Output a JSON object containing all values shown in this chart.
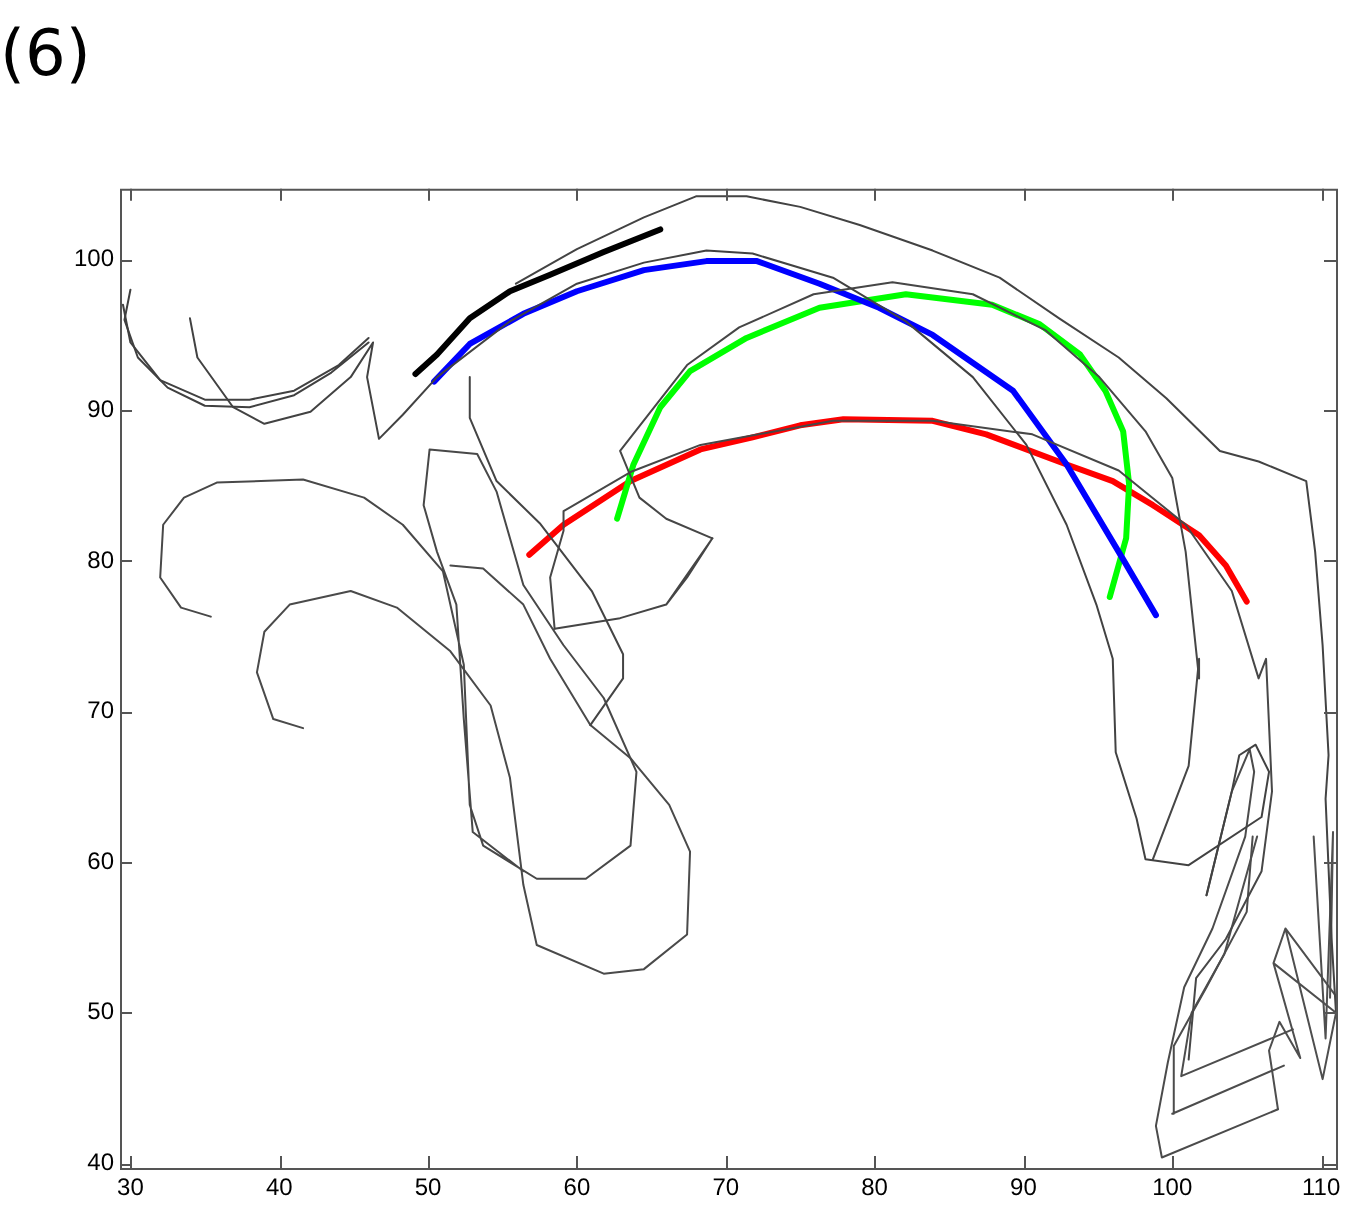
{
  "chart_data": {
    "type": "line",
    "title": "(6)",
    "xlim": [
      29.3,
      111
    ],
    "ylim": [
      39.7,
      104.7
    ],
    "xticks": [
      30,
      40,
      50,
      60,
      70,
      80,
      90,
      100,
      110
    ],
    "yticks": [
      40,
      50,
      60,
      70,
      80,
      90,
      100
    ],
    "grid": false,
    "legend": false,
    "marker": "none",
    "line_style": "solid",
    "series": [
      {
        "color": "#404040",
        "x": [
          30,
          29.6,
          30.5,
          32.5,
          35,
          38,
          41,
          43.5,
          46
        ],
        "values": [
          98,
          96,
          93.5,
          91.5,
          90.3,
          90.2,
          91,
          92.5,
          94.5
        ]
      },
      {
        "color": "#414141",
        "x": [
          29.5,
          30,
          32,
          35,
          38,
          41,
          44,
          46
        ],
        "values": [
          97,
          94.5,
          92,
          90.7,
          90.7,
          91.3,
          93,
          94.8
        ]
      },
      {
        "color": "#424242",
        "x": [
          34,
          34.5,
          36.9,
          39,
          42.1,
          44.8,
          46.3,
          45.9,
          46.7,
          48.3,
          50.6,
          55.5,
          60,
          64.5,
          68.7,
          71.8,
          77.2,
          82.1,
          86.6,
          90.2,
          92.9,
          94.9,
          96,
          96.2,
          97.6,
          98.2,
          101.1,
          106,
          106.5,
          105.6,
          104.5,
          104,
          102.3
        ],
        "values": [
          96.1,
          93.5,
          90.2,
          89.1,
          89.9,
          92.2,
          94.5,
          92.2,
          88.1,
          89.7,
          92.2,
          95.9,
          98.4,
          99.8,
          100.6,
          100.4,
          98.8,
          95.9,
          92.2,
          87.7,
          82.4,
          77.1,
          73.5,
          67.3,
          62.9,
          60.2,
          59.8,
          63,
          66,
          67.8,
          67.1,
          64.7,
          57.8
        ]
      },
      {
        "color": "#434343",
        "x": [
          55.9,
          60,
          64.5,
          68,
          71.4,
          75,
          79,
          83.9,
          88.4,
          92.4,
          96.4,
          99.6,
          103.2,
          105.8,
          109,
          109.6,
          110.1,
          110.5,
          110.3,
          110.7,
          111
        ],
        "values": [
          98.4,
          100.7,
          102.8,
          104.2,
          104.2,
          103.5,
          102.3,
          100.6,
          98.8,
          96.1,
          93.5,
          90.8,
          87.3,
          86.6,
          85.3,
          80.6,
          74.4,
          67.1,
          64.2,
          55,
          50
        ]
      },
      {
        "color": "#444444",
        "x": [
          60.9,
          63.1,
          63.1,
          61,
          57.5,
          54.6,
          52.8,
          52.8
        ],
        "values": [
          69.1,
          72.2,
          73.8,
          78,
          82.5,
          85.3,
          89.5,
          92.2
        ]
      },
      {
        "color": "#454545",
        "x": [
          62.9,
          66,
          69.1,
          67.4,
          66,
          62.9,
          58.5
        ],
        "values": [
          76.2,
          77.1,
          81.5,
          78.9,
          77.1,
          76.2,
          75.5
        ]
      },
      {
        "color": "#464646",
        "x": [
          69.1,
          66,
          64.2,
          62.9,
          67.4,
          70.9,
          75.9,
          81.2,
          86.6,
          91.5,
          95.1,
          98.2,
          100,
          100.9,
          101.8,
          101.8,
          101.1,
          98.7
        ],
        "values": [
          81.5,
          82.8,
          84.2,
          87.3,
          93,
          95.5,
          97.7,
          98.5,
          97.7,
          95.3,
          92.2,
          88.6,
          85.5,
          80.6,
          72.2,
          73.5,
          66.4,
          60.2
        ]
      },
      {
        "color": "#474747",
        "x": [
          58.5,
          58.2,
          59.1,
          59.1,
          63.6,
          68.3,
          77.2,
          83.9,
          90.6,
          96.4,
          100.9,
          104,
          105.8,
          106.3,
          106.7,
          106,
          103.6,
          101.6,
          101.1
        ],
        "values": [
          75.5,
          78.9,
          82,
          83.3,
          85.9,
          87.7,
          89.3,
          89.3,
          88.4,
          86,
          82.4,
          78,
          72.2,
          73.5,
          64.7,
          59.4,
          54.9,
          52.3,
          46.9
        ]
      },
      {
        "color": "#484848",
        "x": [
          35.4,
          33.4,
          32,
          32.2,
          33.6,
          35.8,
          41.6,
          45.7,
          48.3,
          51,
          52.4,
          52.8,
          53.7,
          57.3,
          60.6,
          63.6,
          64,
          61.8,
          59.1,
          56.4,
          54.6,
          53.3,
          50.1,
          49.7,
          50.6,
          51.9,
          52.4,
          53,
          56.4
        ],
        "values": [
          76.3,
          76.9,
          78.9,
          82.4,
          84.2,
          85.2,
          85.4,
          84.2,
          82.4,
          79.3,
          73.1,
          63.8,
          61.1,
          58.9,
          58.9,
          61.1,
          66,
          70.9,
          74.4,
          78.4,
          84.6,
          87.1,
          87.4,
          83.7,
          80.6,
          77.1,
          69.5,
          62,
          59.4
        ]
      },
      {
        "color": "#4a4a4a",
        "x": [
          41.6,
          39.6,
          38.5,
          39,
          40.7,
          44.8,
          47.9,
          51.5,
          54.2,
          55.5,
          56.4,
          57.3,
          61.8,
          64.5,
          67.4,
          67.6,
          66.2,
          63.6,
          60.9,
          58.2,
          56.4,
          53.7,
          51.5
        ],
        "values": [
          68.9,
          69.5,
          72.6,
          75.3,
          77.1,
          78,
          76.9,
          74,
          70.4,
          65.6,
          58.5,
          54.5,
          52.6,
          52.9,
          55.2,
          60.7,
          63.8,
          66.9,
          69.1,
          73.5,
          77.1,
          79.5,
          79.7
        ]
      },
      {
        "color": "#4b4b4b",
        "x": [
          107.1,
          99.3,
          98.9,
          99.7,
          100.8,
          102.7,
          104.9,
          105.5,
          105.2,
          104,
          102.3
        ],
        "values": [
          43.6,
          40.4,
          42.5,
          46.7,
          51.7,
          55.6,
          61.7,
          66,
          67.5,
          64.7,
          57.8
        ]
      },
      {
        "color": "#4c4c4c",
        "x": [
          107.5,
          100,
          100.1,
          102.3,
          105,
          105.4
        ],
        "values": [
          46.5,
          43.3,
          47.8,
          51.7,
          56.7,
          61.7
        ]
      },
      {
        "color": "#4d4d4d",
        "x": [
          108.1,
          100.6,
          101.3,
          103.5,
          105.7
        ],
        "values": [
          48.9,
          45.8,
          50,
          53.9,
          61.7
        ]
      },
      {
        "color": "#4e4e4e",
        "x": [
          107.1,
          106.5,
          107.2,
          108.6,
          106.8,
          107.6,
          110.1,
          111,
          106.8,
          107.6,
          111
        ],
        "values": [
          43.6,
          47.5,
          49.4,
          47,
          53.3,
          55.6,
          45.6,
          50,
          53.3,
          55.6,
          51.1
        ]
      },
      {
        "color": "#4f4f4f",
        "x": [
          109.5,
          110.3,
          110.8,
          110.6
        ],
        "values": [
          61.7,
          48.3,
          62,
          51
        ]
      },
      {
        "color": "#000000",
        "x": [
          49.15,
          50.6,
          52.8,
          55.5,
          58.2,
          61.8,
          65.6
        ],
        "values": [
          92.4,
          93.7,
          96.1,
          97.9,
          99,
          100.5,
          102
        ]
      },
      {
        "color": "#0000ff",
        "x": [
          50.4,
          52.8,
          56.4,
          60,
          64.5,
          68.7,
          72.1,
          76.3,
          80.3,
          83.9,
          89.3,
          92.9,
          96.4,
          98.9
        ],
        "values": [
          91.9,
          94.4,
          96.4,
          97.9,
          99.3,
          99.9,
          99.9,
          98.4,
          96.8,
          95,
          91.3,
          86.4,
          80.6,
          76.4
        ]
      },
      {
        "color": "#00ff00",
        "x": [
          62.7,
          63.8,
          65.6,
          67.6,
          71.4,
          76.3,
          82.1,
          87.9,
          91.1,
          93.8,
          95.5,
          96.7,
          97.1,
          96.9,
          95.8
        ],
        "values": [
          82.8,
          86.4,
          90.2,
          92.6,
          94.8,
          96.8,
          97.7,
          97,
          95.7,
          93.7,
          91.3,
          88.6,
          85.1,
          81.5,
          77.6
        ]
      },
      {
        "color": "#ff0000",
        "x": [
          56.8,
          59.1,
          63.6,
          68.3,
          71.8,
          75,
          77.9,
          83.9,
          87.5,
          92.9,
          96,
          98.7,
          101.8,
          103.6,
          105
        ],
        "values": [
          80.4,
          82.4,
          85.3,
          87.4,
          88.2,
          89,
          89.4,
          89.3,
          88.4,
          86.4,
          85.3,
          83.7,
          81.7,
          79.7,
          77.3
        ]
      }
    ]
  }
}
